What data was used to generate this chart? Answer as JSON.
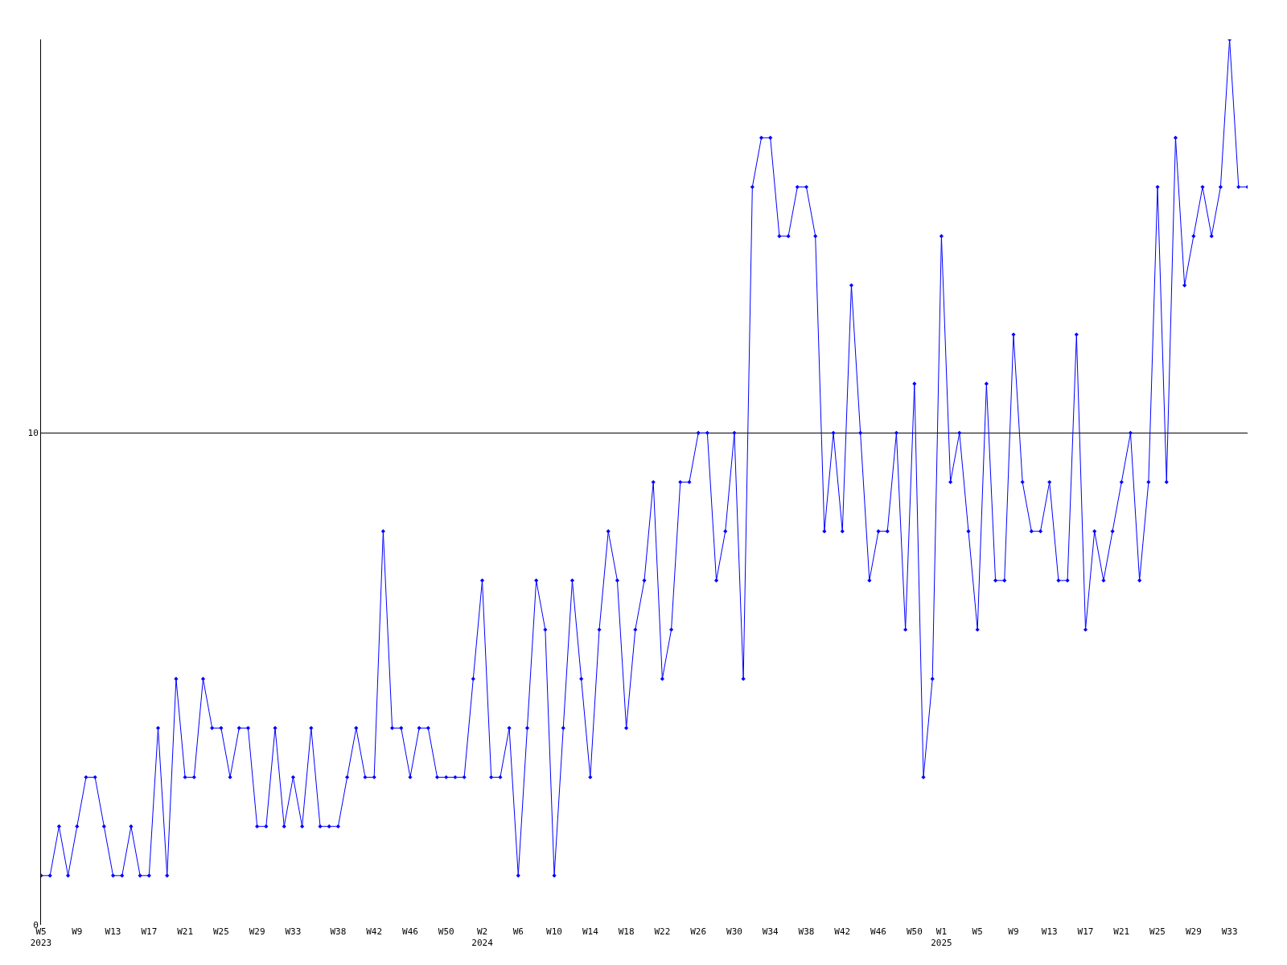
{
  "chart_data": {
    "type": "line",
    "categories": [
      "W5\n2023",
      null,
      null,
      null,
      "W9",
      null,
      null,
      null,
      "W13",
      null,
      null,
      null,
      "W17",
      null,
      null,
      null,
      "W21",
      null,
      null,
      null,
      "W25",
      null,
      null,
      null,
      "W29",
      null,
      null,
      null,
      "W33",
      null,
      null,
      null,
      null,
      "W38",
      null,
      null,
      null,
      "W42",
      null,
      null,
      null,
      "W46",
      null,
      null,
      null,
      "W50",
      null,
      null,
      null,
      "W2\n2024",
      null,
      null,
      null,
      "W6",
      null,
      null,
      null,
      "W10",
      null,
      null,
      null,
      "W14",
      null,
      null,
      null,
      "W18",
      null,
      null,
      null,
      "W22",
      null,
      null,
      null,
      "W26",
      null,
      null,
      null,
      "W30",
      null,
      null,
      null,
      "W34",
      null,
      null,
      null,
      "W38",
      null,
      null,
      null,
      "W42",
      null,
      null,
      null,
      "W46",
      null,
      null,
      null,
      "W50",
      null,
      null,
      "W1\n2025",
      null,
      null,
      null,
      "W5",
      null,
      null,
      null,
      "W9",
      null,
      null,
      null,
      "W13",
      null,
      null,
      null,
      "W17",
      null,
      null,
      null,
      "W21",
      null,
      null,
      null,
      "W25",
      null,
      null,
      null,
      "W29",
      null,
      null,
      null,
      "W33",
      null,
      null
    ],
    "series": [
      {
        "color": "#0000ff",
        "values": [
          1,
          1,
          2,
          1,
          2,
          3,
          3,
          2,
          1,
          1,
          2,
          1,
          1,
          4,
          1,
          5,
          3,
          3,
          5,
          4,
          4,
          3,
          4,
          4,
          2,
          2,
          4,
          2,
          3,
          2,
          4,
          2,
          2,
          2,
          3,
          4,
          3,
          3,
          8,
          4,
          4,
          3,
          4,
          4,
          3,
          3,
          3,
          3,
          5,
          7,
          3,
          3,
          4,
          1,
          4,
          7,
          6,
          1,
          4,
          7,
          5,
          3,
          6,
          8,
          7,
          4,
          6,
          7,
          9,
          5,
          6,
          9,
          9,
          10,
          10,
          7,
          8,
          10,
          5,
          15,
          16,
          16,
          14,
          14,
          15,
          15,
          14,
          8,
          10,
          8,
          13,
          10,
          7,
          8,
          8,
          10,
          6,
          11,
          3,
          5,
          14,
          9,
          10,
          8,
          6,
          11,
          7,
          7,
          12,
          9,
          8,
          8,
          9,
          7,
          7,
          12,
          6,
          8,
          7,
          8,
          9,
          10,
          7,
          9,
          15,
          9,
          16,
          13,
          14,
          15,
          14,
          15,
          18,
          15,
          15
        ]
      }
    ],
    "ylim": [
      0,
      18
    ],
    "yticks": [
      0,
      10
    ],
    "grid": "y",
    "marker": "diamond",
    "line_style": "solid"
  }
}
